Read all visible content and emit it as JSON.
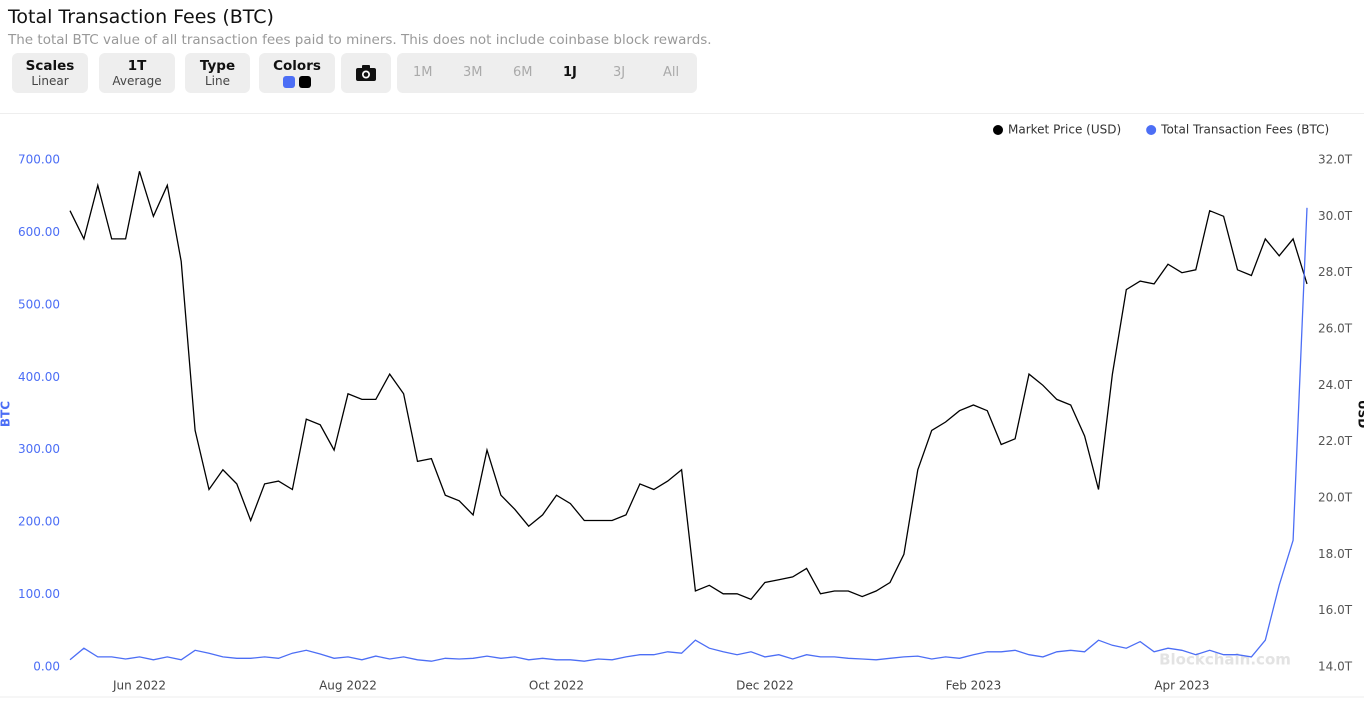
{
  "chart_data": {
    "type": "line",
    "title": "Total Transaction Fees (BTC)",
    "subtitle": "The total BTC value of all transaction fees paid to miners. This does not include coinbase block rewards.",
    "ylabel": "BTC",
    "y2label": "USD",
    "watermark": "Blockchain.com",
    "legend": "top-right",
    "categories": [
      null,
      null,
      null,
      null,
      null,
      "Jun 2022",
      null,
      null,
      null,
      null,
      null,
      null,
      null,
      null,
      null,
      null,
      null,
      null,
      null,
      null,
      "Aug 2022",
      null,
      null,
      null,
      null,
      null,
      null,
      null,
      null,
      null,
      null,
      null,
      null,
      null,
      null,
      "Oct 2022",
      null,
      null,
      null,
      null,
      null,
      null,
      null,
      null,
      null,
      null,
      null,
      null,
      null,
      null,
      "Dec 2022",
      null,
      null,
      null,
      null,
      null,
      null,
      null,
      null,
      null,
      null,
      null,
      null,
      null,
      null,
      "Feb 2023",
      null,
      null,
      null,
      null,
      null,
      null,
      null,
      null,
      null,
      null,
      null,
      null,
      null,
      null,
      "Apr 2023",
      null,
      null,
      null,
      null,
      null,
      null,
      null,
      null,
      null
    ],
    "series": [
      {
        "name": "Market Price (USD)",
        "color": "#000000",
        "axis": "y2",
        "values": [
          30.2,
          29.2,
          31.1,
          29.2,
          29.2,
          31.6,
          30.0,
          31.1,
          28.4,
          22.4,
          20.3,
          21.0,
          20.5,
          19.2,
          20.5,
          20.6,
          20.3,
          22.8,
          22.6,
          21.7,
          23.7,
          23.5,
          23.5,
          24.4,
          23.7,
          21.3,
          21.4,
          20.1,
          19.9,
          19.4,
          21.7,
          20.1,
          19.6,
          19.0,
          19.4,
          20.1,
          19.8,
          19.2,
          19.2,
          19.2,
          19.4,
          20.5,
          20.3,
          20.6,
          21.0,
          16.7,
          16.9,
          16.6,
          16.6,
          16.4,
          17.0,
          17.1,
          17.2,
          17.5,
          16.6,
          16.7,
          16.7,
          16.5,
          16.7,
          17.0,
          18.0,
          21.0,
          22.4,
          22.7,
          23.1,
          23.3,
          23.1,
          21.9,
          22.1,
          24.4,
          24.0,
          23.5,
          23.3,
          22.2,
          20.3,
          24.4,
          27.4,
          27.7,
          27.6,
          28.3,
          28.0,
          28.1,
          30.2,
          30.0,
          28.1,
          27.9,
          29.2,
          28.6,
          29.2,
          27.6
        ]
      },
      {
        "name": "Total Transaction Fees (BTC)",
        "color": "#4c6ef5",
        "values": [
          10,
          26,
          14,
          14,
          11,
          14,
          10,
          14,
          10,
          23,
          19,
          14,
          12,
          12,
          14,
          12,
          19,
          23,
          18,
          12,
          14,
          10,
          15,
          11,
          14,
          10,
          8,
          12,
          11,
          12,
          15,
          12,
          14,
          10,
          12,
          10,
          10,
          8,
          11,
          10,
          14,
          17,
          17,
          21,
          19,
          37,
          26,
          21,
          17,
          21,
          14,
          17,
          11,
          17,
          14,
          14,
          12,
          11,
          10,
          12,
          14,
          15,
          11,
          14,
          12,
          17,
          21,
          21,
          23,
          17,
          14,
          21,
          23,
          21,
          37,
          30,
          26,
          35,
          21,
          26,
          23,
          17,
          23,
          17,
          17,
          14,
          37,
          113,
          175,
          634
        ]
      }
    ],
    "ylim": [
      0,
      700
    ],
    "yticks": [
      {
        "value": 0,
        "label": "0.00"
      },
      {
        "value": 100,
        "label": "100.00"
      },
      {
        "value": 200,
        "label": "200.00"
      },
      {
        "value": 300,
        "label": "300.00"
      },
      {
        "value": 400,
        "label": "400.00"
      },
      {
        "value": 500,
        "label": "500.00"
      },
      {
        "value": 600,
        "label": "600.00"
      },
      {
        "value": 700,
        "label": "700.00"
      }
    ],
    "y2lim": [
      14,
      32
    ],
    "y2ticks": [
      {
        "value": 14,
        "label": "14.0T"
      },
      {
        "value": 16,
        "label": "16.0T"
      },
      {
        "value": 18,
        "label": "18.0T"
      },
      {
        "value": 20,
        "label": "20.0T"
      },
      {
        "value": 22,
        "label": "22.0T"
      },
      {
        "value": 24,
        "label": "24.0T"
      },
      {
        "value": 26,
        "label": "26.0T"
      },
      {
        "value": 28,
        "label": "28.0T"
      },
      {
        "value": 30,
        "label": "30.0T"
      },
      {
        "value": 32,
        "label": "32.0T"
      }
    ],
    "grid": false
  },
  "controls": {
    "scales": {
      "label": "Scales",
      "value": "Linear"
    },
    "average": {
      "label": "1T",
      "value": "Average"
    },
    "type": {
      "label": "Type",
      "value": "Line"
    },
    "colors": {
      "label": "Colors"
    },
    "ranges": [
      "1M",
      "3M",
      "6M",
      "1J",
      "3J",
      "All"
    ],
    "selected_range": 3
  }
}
